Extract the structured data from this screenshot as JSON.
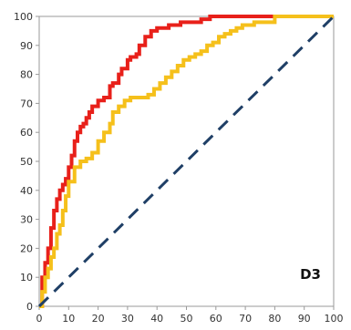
{
  "chart_data": {
    "type": "line",
    "panel_label": "D3",
    "xlim": [
      0,
      100
    ],
    "ylim": [
      0,
      100
    ],
    "x_ticks": [
      "0",
      "10",
      "20",
      "30",
      "40",
      "50",
      "60",
      "70",
      "80",
      "90",
      "100"
    ],
    "y_ticks": [
      "0",
      "10",
      "20",
      "30",
      "40",
      "50",
      "60",
      "70",
      "80",
      "90",
      "100"
    ],
    "grid": false,
    "legend": "none",
    "series": [
      {
        "color": "#e8201a",
        "step": true,
        "x": [
          0,
          1,
          2,
          3,
          4,
          5,
          6,
          7,
          8,
          9,
          10,
          11,
          12,
          13,
          14,
          15,
          16,
          17,
          18,
          20,
          22,
          24,
          25,
          27,
          28,
          30,
          31,
          33,
          34,
          36,
          38,
          40,
          42,
          44,
          46,
          48,
          50,
          52,
          55,
          58,
          60,
          62,
          64,
          66,
          68,
          70,
          72,
          100
        ],
        "y": [
          0,
          10,
          15,
          20,
          27,
          33,
          37,
          40,
          42,
          44,
          48,
          52,
          57,
          60,
          62,
          63,
          65,
          67,
          69,
          71,
          72,
          76,
          77,
          80,
          82,
          85,
          86,
          87,
          90,
          93,
          95,
          96,
          96,
          97,
          97,
          98,
          98,
          98,
          99,
          100,
          100,
          100,
          100,
          100,
          100,
          100,
          100,
          100
        ]
      },
      {
        "color": "#f5c01b",
        "step": true,
        "x": [
          0,
          1,
          2,
          3,
          4,
          5,
          6,
          7,
          8,
          9,
          10,
          12,
          14,
          16,
          18,
          20,
          22,
          24,
          25,
          27,
          29,
          31,
          33,
          35,
          37,
          39,
          41,
          43,
          45,
          47,
          49,
          51,
          53,
          55,
          57,
          59,
          61,
          63,
          65,
          67,
          69,
          71,
          73,
          80,
          90,
          100
        ],
        "y": [
          0,
          5,
          10,
          13,
          17,
          20,
          25,
          28,
          33,
          38,
          43,
          48,
          50,
          51,
          53,
          57,
          60,
          63,
          67,
          69,
          71,
          72,
          72,
          72,
          73,
          75,
          77,
          79,
          81,
          83,
          85,
          86,
          87,
          88,
          90,
          91,
          93,
          94,
          95,
          96,
          97,
          97,
          98,
          100,
          100,
          100
        ]
      },
      {
        "color": "#1f3f66",
        "dashed": true,
        "x": [
          0,
          100
        ],
        "y": [
          0,
          100
        ]
      }
    ]
  }
}
